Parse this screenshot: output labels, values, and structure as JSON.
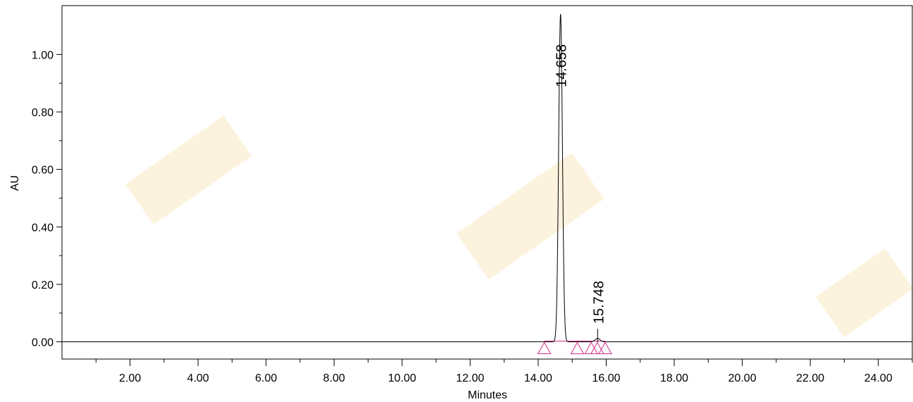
{
  "chart_data": {
    "type": "line",
    "xlabel": "Minutes",
    "ylabel": "AU",
    "xlim": [
      0,
      25
    ],
    "ylim": [
      -0.06,
      1.17
    ],
    "x_ticks": [
      "2.00",
      "4.00",
      "6.00",
      "8.00",
      "10.00",
      "12.00",
      "14.00",
      "16.00",
      "18.00",
      "20.00",
      "22.00",
      "24.00"
    ],
    "y_ticks": [
      "0.00",
      "0.20",
      "0.40",
      "0.60",
      "0.80",
      "1.00"
    ],
    "grid": false,
    "peaks": [
      {
        "retention_time": 14.658,
        "label": "14.658",
        "height": 1.14
      },
      {
        "retention_time": 15.748,
        "label": "15.748",
        "height": 0.012
      }
    ],
    "integration_markers": [
      14.18,
      15.15,
      15.56,
      15.74,
      15.97
    ],
    "colors": {
      "trace": "#000000",
      "baseline": "#d0308a",
      "markers": "#d0308a",
      "watermark": "#f3d58a"
    }
  }
}
